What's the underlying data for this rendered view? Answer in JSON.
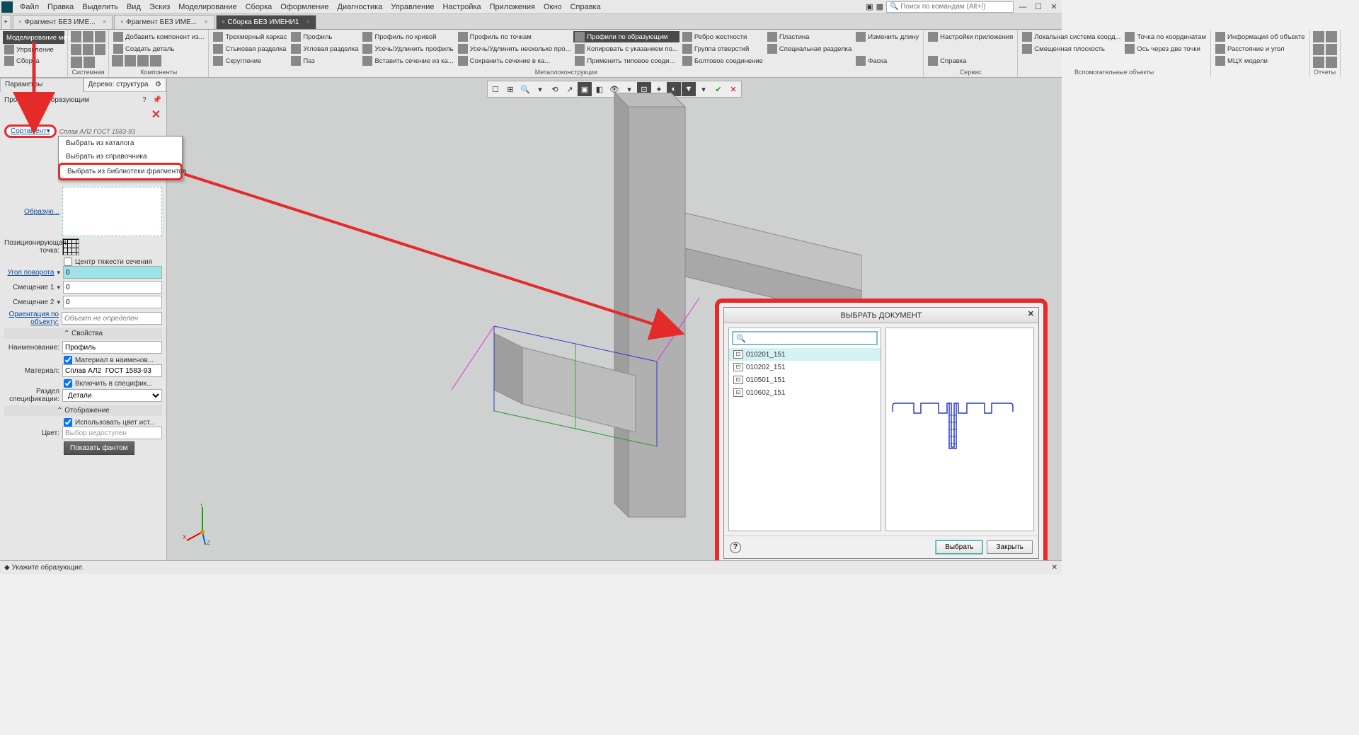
{
  "menubar": {
    "items": [
      "Файл",
      "Правка",
      "Выделить",
      "Вид",
      "Эскиз",
      "Моделирование",
      "Сборка",
      "Оформление",
      "Диагностика",
      "Управление",
      "Настройка",
      "Приложения",
      "Окно",
      "Справка"
    ],
    "search_placeholder": "Поиск по командам (Alt+/)"
  },
  "tabs": [
    {
      "label": "Фрагмент БЕЗ ИМЕ...",
      "active": false
    },
    {
      "label": "Фрагмент БЕЗ ИМЕ...",
      "active": false
    },
    {
      "label": "Сборка БЕЗ ИМЕНИ1",
      "active": true
    }
  ],
  "ribbon": {
    "groups": [
      {
        "label": "",
        "large": [
          {
            "text": "Моделирование металлоконст...",
            "active": true
          },
          {
            "text": "Управление"
          },
          {
            "text": "Сборка"
          }
        ]
      },
      {
        "label": "Системная",
        "icons": 6
      },
      {
        "label": "Компоненты",
        "cols": [
          [
            "Добавить компонент из...",
            "Создать деталь"
          ]
        ],
        "small_icons": 4
      },
      {
        "label": "",
        "cols": [
          [
            "Трехмерный каркас",
            "Стыковая разделка",
            "Скругление"
          ],
          [
            "Профиль",
            "Угловая разделка",
            "Паз"
          ],
          [
            "Профиль по кривой",
            "Усечь/Удлинить профиль",
            "Вставить сечение из ка..."
          ],
          [
            "Профиль по точкам",
            "Усечь/Удлинить несколько про...",
            "Сохранить сечение в ка..."
          ],
          [
            "Профили по образующим",
            "Копировать с указанием по...",
            "Применить типовое соеди..."
          ],
          [
            "Ребро жесткости",
            "Группа отверстий",
            "Болтовое соединение"
          ],
          [
            "Пластина",
            "Специальная разделка",
            ""
          ],
          [
            "Изменить длину",
            "",
            "Фаска"
          ]
        ],
        "group_label": "Металлоконструкции"
      },
      {
        "label": "Сервис",
        "cols": [
          [
            "Настройки приложения",
            "",
            "Справка"
          ]
        ]
      },
      {
        "label": "Вспомогательные объекты",
        "cols": [
          [
            "Локальная система коорд...",
            "Смещенная плоскость",
            ""
          ],
          [
            "Точка по координатам",
            "Ось через две точки",
            ""
          ]
        ]
      },
      {
        "label": "",
        "cols": [
          [
            "Информация об объекте",
            "Расстояние и угол",
            "МЦХ модели"
          ]
        ]
      },
      {
        "label": "Отчеты",
        "icons": 6
      }
    ]
  },
  "left_panel": {
    "tabs": [
      "Параметры",
      "Дерево: структура"
    ],
    "header": "Профили по образующим",
    "sortament_label": "Сортамент",
    "sortament_value": "Сплав АЛ2  ГОСТ 1583-93",
    "dropdown": [
      "Выбрать из каталога",
      "Выбрать из справочника",
      "Выбрать из библиотеки фрагментов"
    ],
    "obrazu_label": "Образую...",
    "pos_label": "Позиционирующая точка:",
    "center_label": "Центр тяжести сечения",
    "angle_label": "Угол поворота",
    "angle_value": "0",
    "off1_label": "Смещение 1",
    "off1_value": "0",
    "off2_label": "Смещение 2",
    "off2_value": "0",
    "orient_label": "Ориентация по объекту:",
    "orient_value": "Объект не определен",
    "sect_props": "Свойства",
    "name_label": "Наименование:",
    "name_value": "Профиль",
    "mat_in_name": "Материал в наименов...",
    "mat_label": "Материал:",
    "mat_value": "Сплав АЛ2  ГОСТ 1583-93",
    "incl_spec": "Включить в специфик...",
    "spec_label": "Раздел спецификации:",
    "spec_value": "Детали",
    "sect_display": "Отображение",
    "use_color": "Использовать цвет ист...",
    "color_label": "Цвет:",
    "color_value": "Выбор недоступен",
    "show_phantom": "Показать фантом"
  },
  "dialog": {
    "title": "ВЫБРАТЬ ДОКУМЕНТ",
    "items": [
      "010201_151",
      "010202_151",
      "010501_151",
      "010602_151"
    ],
    "btn_select": "Выбрать",
    "btn_close": "Закрыть"
  },
  "statusbar": {
    "text": "Укажите образующие."
  },
  "colors": {
    "annotation": "#e52a2a",
    "highlight": "#9de3e8",
    "profile_stroke": "#2a3cc9"
  }
}
